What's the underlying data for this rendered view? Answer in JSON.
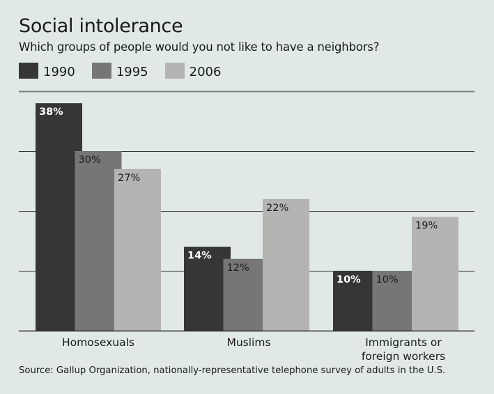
{
  "chart_data": {
    "type": "bar",
    "title": "Social intolerance",
    "subtitle": "Which groups of people would you not like to have a neighbors?",
    "categories": [
      "Homosexuals",
      "Muslims",
      "Immigrants or foreign workers"
    ],
    "category_lines": [
      [
        "Homosexuals"
      ],
      [
        "Muslims"
      ],
      [
        "Immigrants or",
        "foreign workers"
      ]
    ],
    "series": [
      {
        "name": "1990",
        "color": "#363636",
        "label_color": "#ffffff",
        "values": [
          38,
          14,
          10
        ]
      },
      {
        "name": "1995",
        "color": "#767674",
        "label_color": "#1a1a1a",
        "values": [
          30,
          12,
          10
        ]
      },
      {
        "name": "2006",
        "color": "#b4b4b3",
        "label_color": "#1a1a1a",
        "values": [
          27,
          22,
          19
        ]
      }
    ],
    "value_suffix": "%",
    "ylim": [
      0,
      40
    ],
    "gridlines": [
      10,
      20,
      30,
      40
    ],
    "grid": true,
    "legend_position": "top-left",
    "xlabel": "",
    "ylabel": "",
    "source": "Source: Gallup Organization, nationally-representative telephone survey of adults in the U.S."
  }
}
